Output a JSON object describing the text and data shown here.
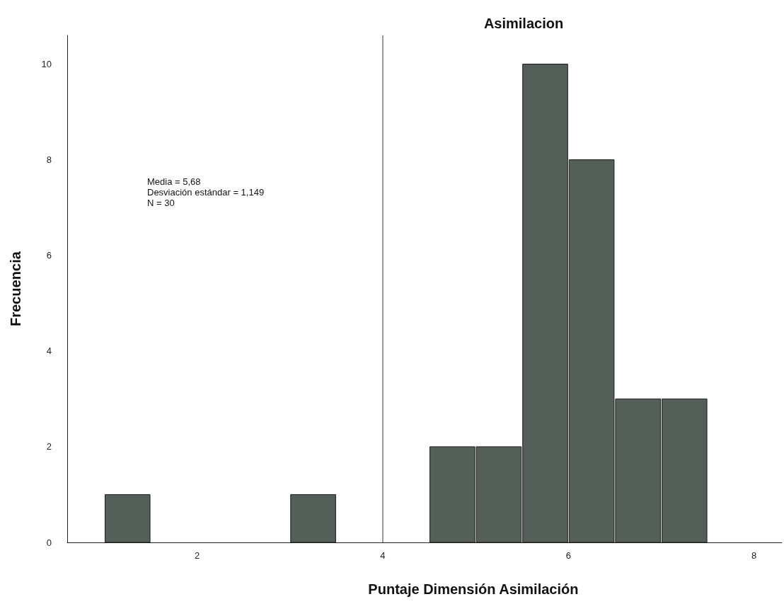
{
  "chart_data": {
    "type": "histogram",
    "title": "Asimilacion",
    "xlabel": "Puntaje Dimensión Asimilación",
    "ylabel": "Frecuencia",
    "bins": [
      1,
      1.5,
      2,
      2.5,
      3,
      3.5,
      4,
      4.5,
      5,
      5.5,
      6,
      6.5,
      7,
      7.5
    ],
    "values": [
      1,
      0,
      0,
      0,
      1,
      0,
      0,
      2,
      2,
      10,
      8,
      3,
      3
    ],
    "color": "#555f59",
    "xlim": [
      0.6,
      8.3
    ],
    "xticks": [
      2,
      4,
      6,
      8
    ],
    "ylim": [
      0,
      10.6
    ],
    "yticks": [
      0,
      2,
      4,
      6,
      8,
      10
    ],
    "grid": false,
    "ref_lines": [
      {
        "axis": "x",
        "value": 4,
        "color": "#777777"
      }
    ],
    "annotations": [
      "Media = 5,68",
      "Desviación estándar = 1,149",
      "N = 30"
    ]
  }
}
